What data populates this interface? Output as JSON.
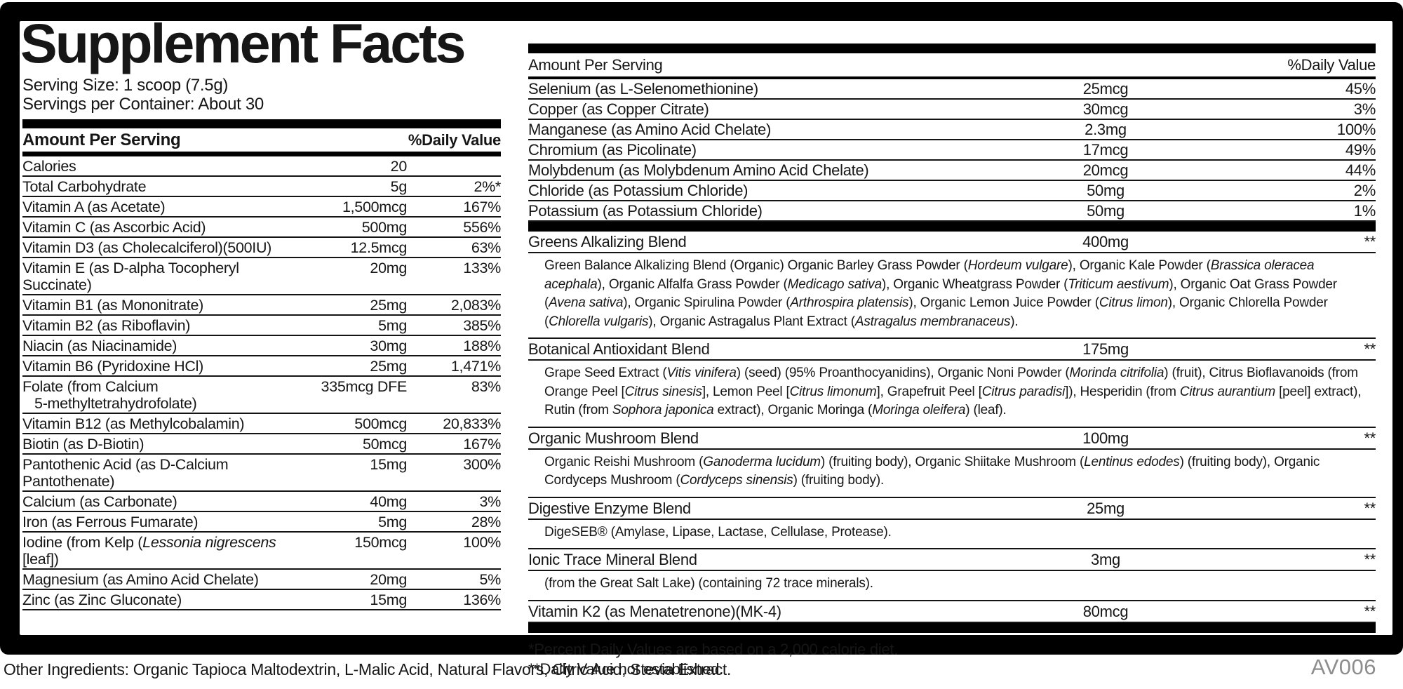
{
  "title": "Supplement Facts",
  "serving_size": "Serving Size: 1 scoop (7.5g)",
  "servings_per_container": "Servings per Container: About 30",
  "headers": {
    "amount": "Amount Per Serving",
    "daily_value": "%Daily Value"
  },
  "left_table": {
    "rows": [
      {
        "name": "Calories",
        "amount": "20",
        "dv": ""
      },
      {
        "name": "Total Carbohydrate",
        "amount": "5g",
        "dv": "2%*"
      },
      {
        "name": "Vitamin A (as Acetate)",
        "amount": "1,500mcg",
        "dv": "167%"
      },
      {
        "name": "Vitamin C (as Ascorbic Acid)",
        "amount": "500mg",
        "dv": "556%"
      },
      {
        "name": "Vitamin D3 (as Cholecalciferol)(500IU)",
        "amount": "12.5mcg",
        "dv": "63%"
      },
      {
        "name": "Vitamin E (as D-alpha Tocopheryl Succinate)",
        "amount": "20mg",
        "dv": "133%"
      },
      {
        "name": "Vitamin B1 (as Mononitrate)",
        "amount": "25mg",
        "dv": "2,083%"
      },
      {
        "name": "Vitamin B2 (as Riboflavin)",
        "amount": "5mg",
        "dv": "385%"
      },
      {
        "name": "Niacin (as Niacinamide)",
        "amount": "30mg",
        "dv": "188%"
      },
      {
        "name": "Vitamin B6 (Pyridoxine HCl)",
        "amount": "25mg",
        "dv": "1,471%"
      },
      {
        "name": "Folate (from Calcium\n5-methyltetrahydrofolate)",
        "amount": "335mcg DFE",
        "dv": "83%"
      },
      {
        "name": "Vitamin B12 (as Methylcobalamin)",
        "amount": "500mcg",
        "dv": "20,833%"
      },
      {
        "name": "Biotin (as D-Biotin)",
        "amount": "50mcg",
        "dv": "167%"
      },
      {
        "name": "Pantothenic Acid (as D-Calcium Pantothenate)",
        "amount": "15mg",
        "dv": "300%"
      },
      {
        "name": "Calcium (as Carbonate)",
        "amount": "40mg",
        "dv": "3%"
      },
      {
        "name": "Iron (as Ferrous Fumarate)",
        "amount": "5mg",
        "dv": "28%"
      },
      {
        "name": "Iodine (from Kelp (~Lessonia nigrescens~ [leaf])",
        "amount": "150mcg",
        "dv": "100%"
      },
      {
        "name": "Magnesium (as Amino Acid Chelate)",
        "amount": "20mg",
        "dv": "5%"
      },
      {
        "name": "Zinc (as Zinc Gluconate)",
        "amount": "15mg",
        "dv": "136%"
      }
    ]
  },
  "right_table": {
    "rows": [
      {
        "name": "Selenium (as L-Selenomethionine)",
        "amount": "25mcg",
        "dv": "45%"
      },
      {
        "name": "Copper (as Copper Citrate)",
        "amount": "30mcg",
        "dv": "3%"
      },
      {
        "name": "Manganese (as Amino Acid Chelate)",
        "amount": "2.3mg",
        "dv": "100%"
      },
      {
        "name": "Chromium (as Picolinate)",
        "amount": "17mcg",
        "dv": "49%"
      },
      {
        "name": "Molybdenum (as Molybdenum Amino Acid Chelate)",
        "amount": "20mcg",
        "dv": "44%"
      },
      {
        "name": "Chloride (as Potassium Chloride)",
        "amount": "50mg",
        "dv": "2%"
      },
      {
        "name": "Potassium (as Potassium Chloride)",
        "amount": "50mg",
        "dv": "1%"
      }
    ]
  },
  "blends": [
    {
      "name": "Greens Alkalizing Blend",
      "amount": "400mg",
      "dv": "**",
      "desc": "Green Balance Alkalizing Blend (Organic) Organic Barley Grass Powder (~Hordeum vulgare~), Organic Kale Powder (~Brassica oleracea acephala~), Organic Alfalfa Grass Powder (~Medicago sativa~), Organic Wheatgrass Powder (~Triticum aestivum~), Organic Oat Grass Powder (~Avena sativa~), Organic Spirulina Powder (~Arthrospira platensis~), Organic Lemon Juice Powder (~Citrus limon~), Organic Chlorella Powder (~Chlorella vulgaris~), Organic Astragalus Plant Extract (~Astragalus membranaceus~)."
    },
    {
      "name": "Botanical Antioxidant Blend",
      "amount": "175mg",
      "dv": "**",
      "desc": "Grape Seed Extract (~Vitis vinifera~) (seed) (95% Proanthocyanidins), Organic Noni Powder (~Morinda citrifolia~) (fruit), Citrus Bioflavanoids (from Orange Peel [~Citrus sinesis~], Lemon Peel [~Citrus limonum~], Grapefruit Peel [~Citrus paradisi~]), Hesperidin (from ~Citrus aurantium~ [peel] extract), Rutin (from ~Sophora japonica~ extract), Organic Moringa (~Moringa oleifera~) (leaf)."
    },
    {
      "name": "Organic Mushroom Blend",
      "amount": "100mg",
      "dv": "**",
      "desc": "Organic Reishi Mushroom (~Ganoderma lucidum~) (fruiting body), Organic Shiitake Mushroom (~Lentinus edodes~) (fruiting body), Organic Cordyceps Mushroom (~Cordyceps sinensis~) (fruiting body)."
    },
    {
      "name": "Digestive Enzyme Blend",
      "amount": "25mg",
      "dv": "**",
      "desc": "DigeSEB® (Amylase, Lipase, Lactase, Cellulase, Protease)."
    },
    {
      "name": "Ionic Trace Mineral Blend",
      "amount": "3mg",
      "dv": "**",
      "desc": "(from the Great Salt Lake) (containing 72 trace minerals)."
    },
    {
      "name": "Vitamin K2 (as Menatetrenone)(MK-4)",
      "amount": "80mcg",
      "dv": "**",
      "desc": ""
    }
  ],
  "footnotes": [
    "*Percent Daily Values are based on a 2,000 calorie diet.",
    "**Daily Value not established."
  ],
  "other_ingredients": "Other Ingredients: Organic Tapioca Maltodextrin, L-Malic Acid, Natural Flavors, Citric Acid, Stevia Extract.",
  "product_code": "AV006",
  "colors": {
    "text": "#161616",
    "frame": "#000000",
    "code": "#8d8d8d"
  }
}
